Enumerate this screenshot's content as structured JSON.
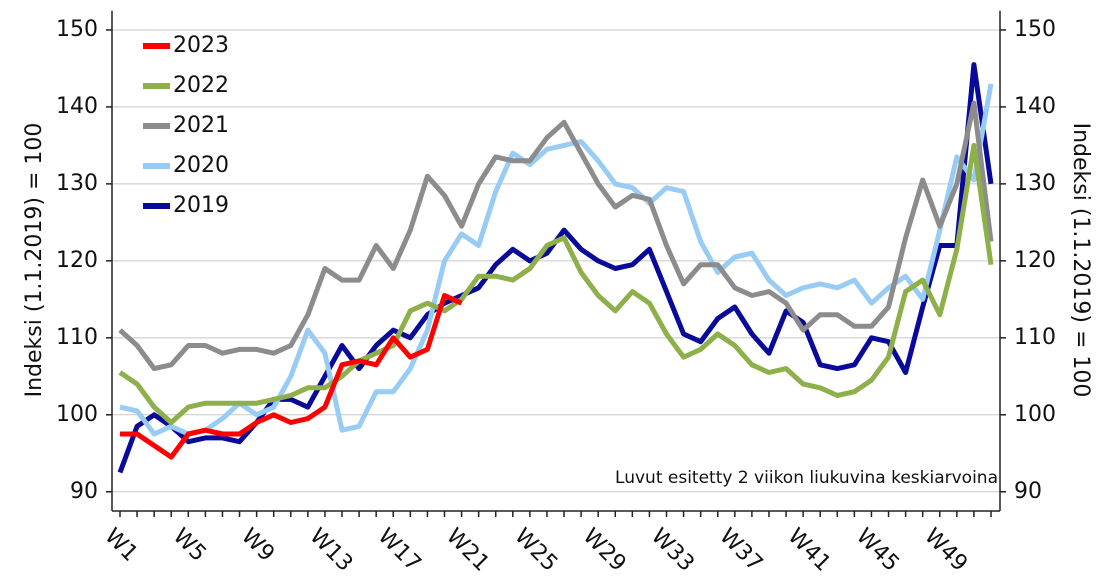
{
  "chart_data": {
    "type": "line",
    "y_label": "Indeksi (1.1.2019) = 100",
    "y2_label": "Indeksi (1.1.2019) = 100",
    "annotation": "Luvut esitetty 2 viikon liukuvina keskiarvoina",
    "categories": [
      "W1",
      null,
      null,
      null,
      "W5",
      null,
      null,
      null,
      "W9",
      null,
      null,
      null,
      "W13",
      null,
      null,
      null,
      "W17",
      null,
      null,
      null,
      "W21",
      null,
      null,
      null,
      "W25",
      null,
      null,
      null,
      "W29",
      null,
      null,
      null,
      "W33",
      null,
      null,
      null,
      "W37",
      null,
      null,
      null,
      "W41",
      null,
      null,
      null,
      "W45",
      null,
      null,
      null,
      "W49",
      null,
      null,
      null
    ],
    "ylim": [
      87.5,
      152.5
    ],
    "yticks": [
      90,
      100,
      110,
      120,
      130,
      140,
      150
    ],
    "y2lim": [
      87.5,
      152.5
    ],
    "y2ticks": [
      90,
      100,
      110,
      120,
      130,
      140,
      150
    ],
    "grid": true,
    "legend": "upper left",
    "series": [
      {
        "name": "2023",
        "color": "#ff0000",
        "values": [
          97.5,
          97.5,
          96,
          94.5,
          97.5,
          98,
          97.5,
          97.5,
          99,
          100,
          99,
          99.5,
          101,
          106.5,
          107,
          106.5,
          110,
          107.5,
          108.5,
          115.5,
          114.5,
          null,
          null,
          null,
          null,
          null,
          null,
          null,
          null,
          null,
          null,
          null,
          null,
          null,
          null,
          null,
          null,
          null,
          null,
          null,
          null,
          null,
          null,
          null,
          null,
          null,
          null,
          null,
          null,
          null,
          null,
          null
        ]
      },
      {
        "name": "2022",
        "color": "#8db04a",
        "values": [
          105.5,
          104,
          101,
          99,
          101,
          101.5,
          101.5,
          101.5,
          101.5,
          102,
          102.5,
          103.5,
          103.5,
          105,
          107,
          108,
          109,
          113.5,
          114.5,
          113.5,
          115,
          118,
          118,
          117.5,
          119,
          122,
          123,
          118.5,
          115.5,
          113.5,
          116,
          114.5,
          110.5,
          107.5,
          108.5,
          110.5,
          109,
          106.5,
          105.5,
          106,
          104,
          103.5,
          102.5,
          103,
          104.5,
          107.5,
          116,
          117.5,
          113,
          121.5,
          135,
          119.5
        ]
      },
      {
        "name": "2021",
        "color": "#8c8c8c",
        "values": [
          111,
          109,
          106,
          106.5,
          109,
          109,
          108,
          108.5,
          108.5,
          108,
          109,
          113,
          119,
          117.5,
          117.5,
          122,
          119,
          124,
          131,
          128.5,
          124.5,
          130,
          133.5,
          133,
          133,
          136,
          138,
          134,
          130,
          127,
          128.5,
          128,
          122,
          117,
          119.5,
          119.5,
          116.5,
          115.5,
          116,
          114.5,
          111,
          113,
          113,
          111.5,
          111.5,
          114,
          123,
          130.5,
          124.5,
          130,
          140.5,
          122.5
        ]
      },
      {
        "name": "2020",
        "color": "#99ccf5",
        "values": [
          101,
          100.5,
          97.5,
          98.5,
          97.5,
          98,
          99.5,
          101.5,
          100,
          101,
          105,
          111,
          108,
          98,
          98.5,
          103,
          103,
          106,
          111,
          120,
          123.5,
          122,
          129,
          134,
          132.5,
          134.5,
          135,
          135.5,
          133,
          130,
          129.5,
          127.5,
          129.5,
          129,
          122.5,
          118.5,
          120.5,
          121,
          117.5,
          115.5,
          116.5,
          117,
          116.5,
          117.5,
          114.5,
          116.5,
          118,
          115,
          124,
          133.5,
          130.5,
          143
        ]
      },
      {
        "name": "2019",
        "color": "#0a0a9a",
        "values": [
          92.5,
          98.5,
          100,
          98.5,
          96.5,
          97,
          97,
          96.5,
          99,
          102,
          102,
          101,
          105,
          109,
          106,
          109,
          111,
          110,
          113,
          114.5,
          115.5,
          116.5,
          119.5,
          121.5,
          120,
          121,
          124,
          121.5,
          120,
          119,
          119.5,
          121.5,
          116,
          110.5,
          109.5,
          112.5,
          114,
          110.5,
          108,
          113.5,
          112,
          106.5,
          106,
          106.5,
          110,
          109.5,
          105.5,
          114,
          122,
          122,
          145.5,
          130
        ]
      }
    ]
  }
}
